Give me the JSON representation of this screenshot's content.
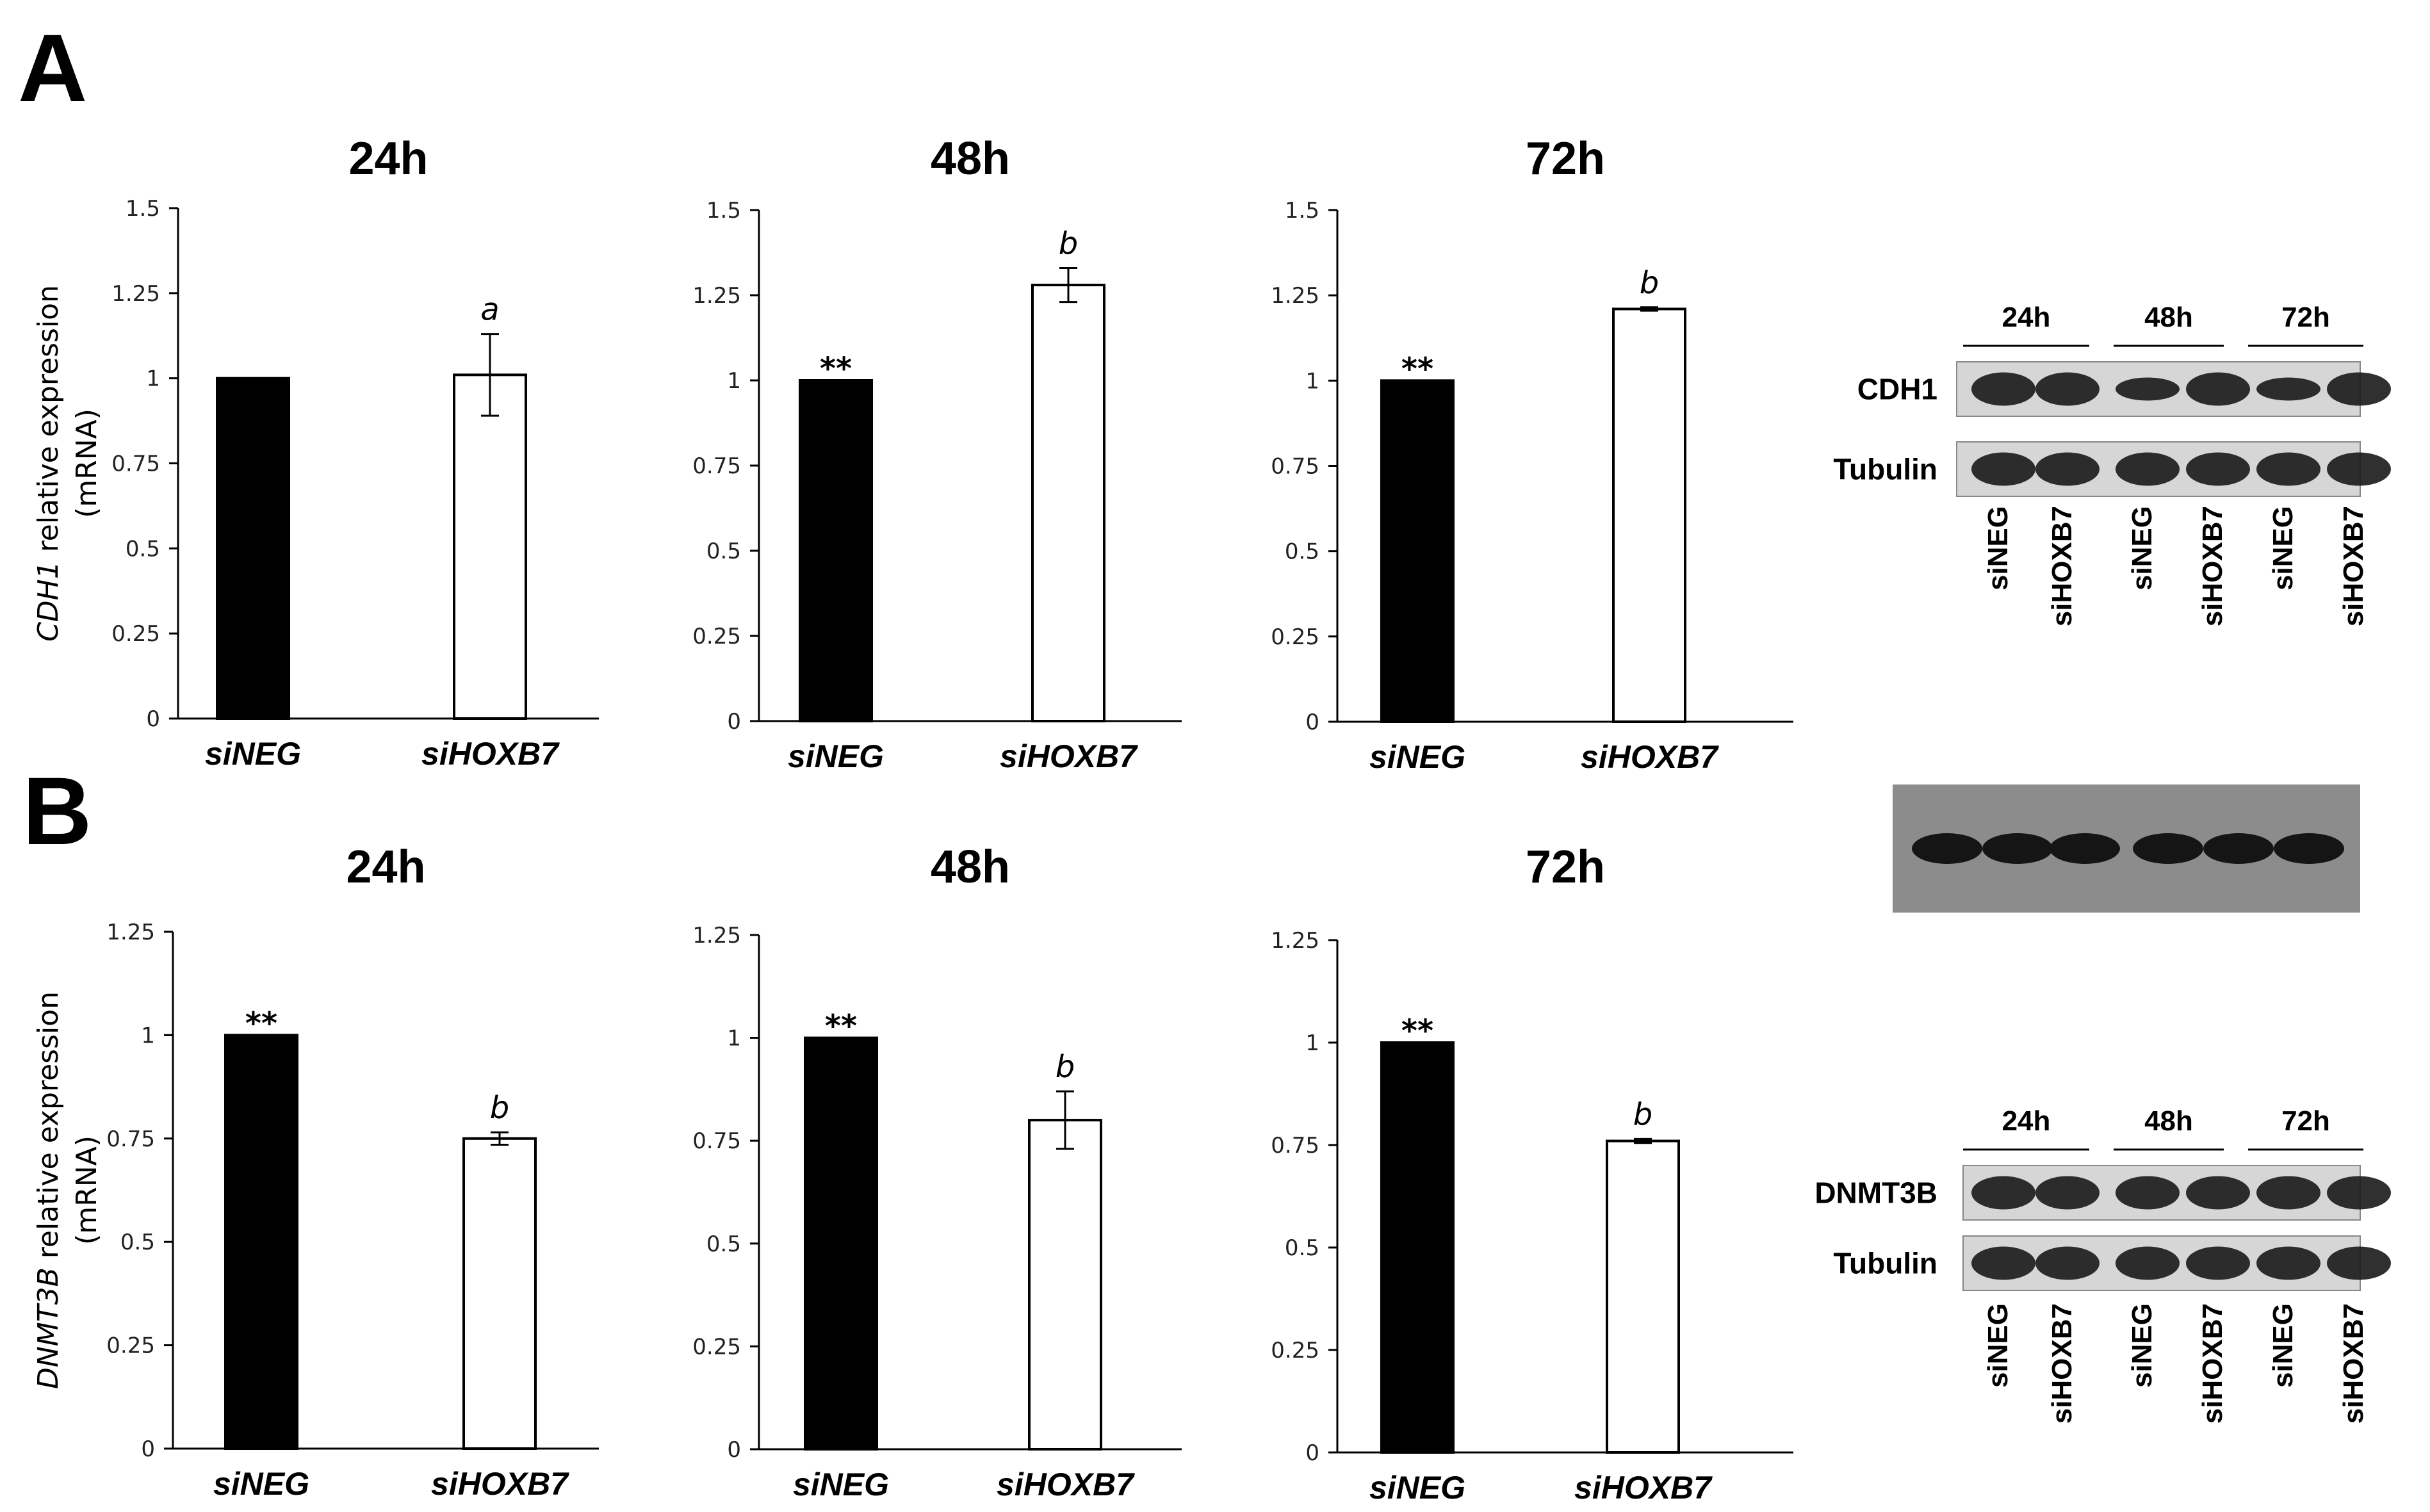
{
  "panels": [
    {
      "letter": "A"
    },
    {
      "letter": "B"
    }
  ],
  "chart_data": [
    {
      "type": "bar",
      "panel": "A",
      "title": "24h",
      "ylabel_gene": "CDH1",
      "ylabel_rest": " relative expression",
      "ylabel_line2": "(mRNA)",
      "categories": [
        "siNEG",
        "siHOXB7"
      ],
      "values": [
        1.0,
        1.01
      ],
      "errors": [
        0.0,
        0.12
      ],
      "annotations": [
        "",
        "a"
      ],
      "colors": [
        "#000000",
        "#ffffff"
      ],
      "ylim": [
        0,
        1.5
      ],
      "ticks": [
        "0",
        "0.25",
        "0.5",
        "0.75",
        "1",
        "1.25",
        "1.5"
      ],
      "tick_values": [
        0,
        0.25,
        0.5,
        0.75,
        1,
        1.25,
        1.5
      ]
    },
    {
      "type": "bar",
      "panel": "A",
      "title": "48h",
      "categories": [
        "siNEG",
        "siHOXB7"
      ],
      "values": [
        1.0,
        1.28
      ],
      "errors": [
        0.0,
        0.05
      ],
      "annotations": [
        "**",
        "b"
      ],
      "colors": [
        "#000000",
        "#ffffff"
      ],
      "ylim": [
        0,
        1.5
      ],
      "ticks": [
        "0",
        "0.25",
        "0.5",
        "0.75",
        "1",
        "1.25",
        "1.5"
      ],
      "tick_values": [
        0,
        0.25,
        0.5,
        0.75,
        1,
        1.25,
        1.5
      ]
    },
    {
      "type": "bar",
      "panel": "A",
      "title": "72h",
      "categories": [
        "siNEG",
        "siHOXB7"
      ],
      "values": [
        1.0,
        1.21
      ],
      "errors": [
        0.0,
        0.005
      ],
      "annotations": [
        "**",
        "b"
      ],
      "colors": [
        "#000000",
        "#ffffff"
      ],
      "ylim": [
        0,
        1.5
      ],
      "ticks": [
        "0",
        "0.25",
        "0.5",
        "0.75",
        "1",
        "1.25",
        "1.5"
      ],
      "tick_values": [
        0,
        0.25,
        0.5,
        0.75,
        1,
        1.25,
        1.5
      ]
    },
    {
      "type": "bar",
      "panel": "B",
      "title": "24h",
      "ylabel_gene": "DNMT3B",
      "ylabel_rest": " relative expression",
      "ylabel_line2": "(mRNA)",
      "categories": [
        "siNEG",
        "siHOXB7"
      ],
      "values": [
        1.0,
        0.75
      ],
      "errors": [
        0.0,
        0.015
      ],
      "annotations": [
        "**",
        "b"
      ],
      "colors": [
        "#000000",
        "#ffffff"
      ],
      "ylim": [
        0,
        1.25
      ],
      "ticks": [
        "0",
        "0.25",
        "0.5",
        "0.75",
        "1",
        "1.25"
      ],
      "tick_values": [
        0,
        0.25,
        0.5,
        0.75,
        1,
        1.25
      ]
    },
    {
      "type": "bar",
      "panel": "B",
      "title": "48h",
      "categories": [
        "siNEG",
        "siHOXB7"
      ],
      "values": [
        1.0,
        0.8
      ],
      "errors": [
        0.0,
        0.07
      ],
      "annotations": [
        "**",
        "b"
      ],
      "colors": [
        "#000000",
        "#ffffff"
      ],
      "ylim": [
        0,
        1.25
      ],
      "ticks": [
        "0",
        "0.25",
        "0.5",
        "0.75",
        "1",
        "1.25"
      ],
      "tick_values": [
        0,
        0.25,
        0.5,
        0.75,
        1,
        1.25
      ]
    },
    {
      "type": "bar",
      "panel": "B",
      "title": "72h",
      "categories": [
        "siNEG",
        "siHOXB7"
      ],
      "values": [
        1.0,
        0.76
      ],
      "errors": [
        0.0,
        0.005
      ],
      "annotations": [
        "**",
        "b"
      ],
      "colors": [
        "#000000",
        "#ffffff"
      ],
      "ylim": [
        0,
        1.25
      ],
      "ticks": [
        "0",
        "0.25",
        "0.5",
        "0.75",
        "1",
        "1.25"
      ],
      "tick_values": [
        0,
        0.25,
        0.5,
        0.75,
        1,
        1.25
      ]
    }
  ],
  "blots": [
    {
      "panel": "A",
      "timepoints": [
        "24h",
        "48h",
        "72h"
      ],
      "rows": [
        "CDH1",
        "Tubulin"
      ],
      "lanes": [
        "siNEG",
        "siHOXB7",
        "siNEG",
        "siHOXB7",
        "siNEG",
        "siHOXB7"
      ]
    },
    {
      "panel": "B",
      "timepoints": [
        "24h",
        "48h",
        "72h"
      ],
      "rows": [
        "DNMT3B",
        "Tubulin"
      ],
      "lanes": [
        "siNEG",
        "siHOXB7",
        "siNEG",
        "siHOXB7",
        "siNEG",
        "siHOXB7"
      ]
    }
  ]
}
